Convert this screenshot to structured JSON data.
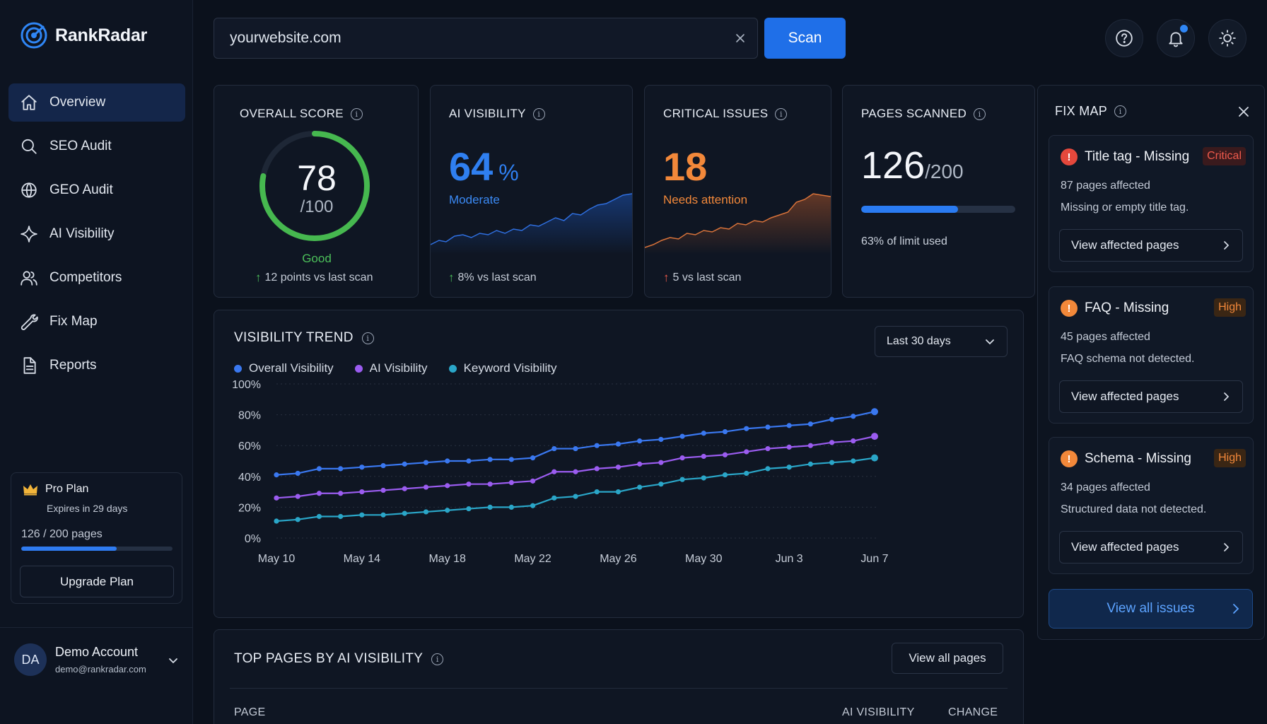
{
  "brand": {
    "name": "RankRadar"
  },
  "nav": [
    {
      "label": "Overview",
      "icon": "home-icon",
      "active": true
    },
    {
      "label": "SEO Audit",
      "icon": "search-icon"
    },
    {
      "label": "GEO Audit",
      "icon": "globe-icon"
    },
    {
      "label": "AI Visibility",
      "icon": "sparkle-icon"
    },
    {
      "label": "Competitors",
      "icon": "users-icon"
    },
    {
      "label": "Fix Map",
      "icon": "wrench-icon"
    },
    {
      "label": "Reports",
      "icon": "document-icon"
    }
  ],
  "plan": {
    "name": "Pro Plan",
    "expires": "Expires in 29 days",
    "pages": "126 / 200 pages",
    "usage_fraction": 0.63,
    "upgrade_label": "Upgrade Plan"
  },
  "account": {
    "initials": "DA",
    "name": "Demo Account",
    "email": "demo@rankradar.com"
  },
  "search": {
    "value": "yourwebsite.com",
    "scan_label": "Scan"
  },
  "cards": {
    "overall": {
      "title": "OVERALL SCORE",
      "score": "78",
      "denominator": "/100",
      "score_value": 78,
      "rating": "Good",
      "delta": "12 points vs last scan"
    },
    "ai_visibility": {
      "title": "AI VISIBILITY",
      "value": "64",
      "unit": "%",
      "status": "Moderate",
      "delta": "8% vs last scan"
    },
    "critical": {
      "title": "CRITICAL ISSUES",
      "value": "18",
      "status": "Needs attention",
      "delta": "5 vs last scan"
    },
    "pages": {
      "title": "PAGES SCANNED",
      "value": "126",
      "limit": "/200",
      "used_fraction": 0.63,
      "used_text": "63% of limit used"
    }
  },
  "trend": {
    "title": "VISIBILITY TREND",
    "range": "Last 30 days",
    "legend": [
      {
        "name": "Overall Visibility",
        "color": "#3a78f0"
      },
      {
        "name": "AI Visibility",
        "color": "#9b5cf0"
      },
      {
        "name": "Keyword Visibility",
        "color": "#2aa6c8"
      }
    ]
  },
  "chart_data": {
    "type": "line",
    "title": "VISIBILITY TREND",
    "x_ticks": [
      "May 10",
      "May 14",
      "May 18",
      "May 22",
      "May 26",
      "May 30",
      "Jun 3",
      "Jun 7"
    ],
    "y_ticks": [
      "0%",
      "20%",
      "40%",
      "60%",
      "80%",
      "100%"
    ],
    "ylim": [
      0,
      100
    ],
    "x": [
      "May 10",
      "May 11",
      "May 12",
      "May 13",
      "May 14",
      "May 15",
      "May 16",
      "May 17",
      "May 18",
      "May 19",
      "May 20",
      "May 21",
      "May 22",
      "May 23",
      "May 24",
      "May 25",
      "May 26",
      "May 27",
      "May 28",
      "May 29",
      "May 30",
      "May 31",
      "Jun 1",
      "Jun 2",
      "Jun 3",
      "Jun 4",
      "Jun 5",
      "Jun 6",
      "Jun 7"
    ],
    "series": [
      {
        "name": "Overall Visibility",
        "color": "#3a78f0",
        "values": [
          41,
          42,
          45,
          45,
          46,
          47,
          48,
          49,
          50,
          50,
          51,
          51,
          52,
          58,
          58,
          60,
          61,
          63,
          64,
          66,
          68,
          69,
          71,
          72,
          73,
          74,
          77,
          79,
          82
        ]
      },
      {
        "name": "AI Visibility",
        "color": "#9b5cf0",
        "values": [
          26,
          27,
          29,
          29,
          30,
          31,
          32,
          33,
          34,
          35,
          35,
          36,
          37,
          43,
          43,
          45,
          46,
          48,
          49,
          52,
          53,
          54,
          56,
          58,
          59,
          60,
          62,
          63,
          66
        ]
      },
      {
        "name": "Keyword Visibility",
        "color": "#2aa6c8",
        "values": [
          11,
          12,
          14,
          14,
          15,
          15,
          16,
          17,
          18,
          19,
          20,
          20,
          21,
          26,
          27,
          30,
          30,
          33,
          35,
          38,
          39,
          41,
          42,
          45,
          46,
          48,
          49,
          50,
          52
        ]
      }
    ]
  },
  "top_pages": {
    "title": "TOP PAGES BY AI VISIBILITY",
    "view_all": "View all pages",
    "columns": {
      "page": "PAGE",
      "ai_visibility": "AI VISIBILITY",
      "change": "CHANGE"
    }
  },
  "fix_map": {
    "title": "FIX MAP",
    "issues": [
      {
        "name": "Title tag - Missing",
        "severity": "Critical",
        "severity_color": "#ef5a4c",
        "count": "87 pages affected",
        "description": "Missing or empty title tag.",
        "action": "View affected pages"
      },
      {
        "name": "FAQ - Missing",
        "severity": "High",
        "severity_color": "#f2883a",
        "count": "45 pages affected",
        "description": "FAQ schema not detected.",
        "action": "View affected pages"
      },
      {
        "name": "Schema - Missing",
        "severity": "High",
        "severity_color": "#f2883a",
        "count": "34 pages affected",
        "description": "Structured data not detected.",
        "action": "View affected pages"
      }
    ],
    "view_all": "View all issues"
  }
}
